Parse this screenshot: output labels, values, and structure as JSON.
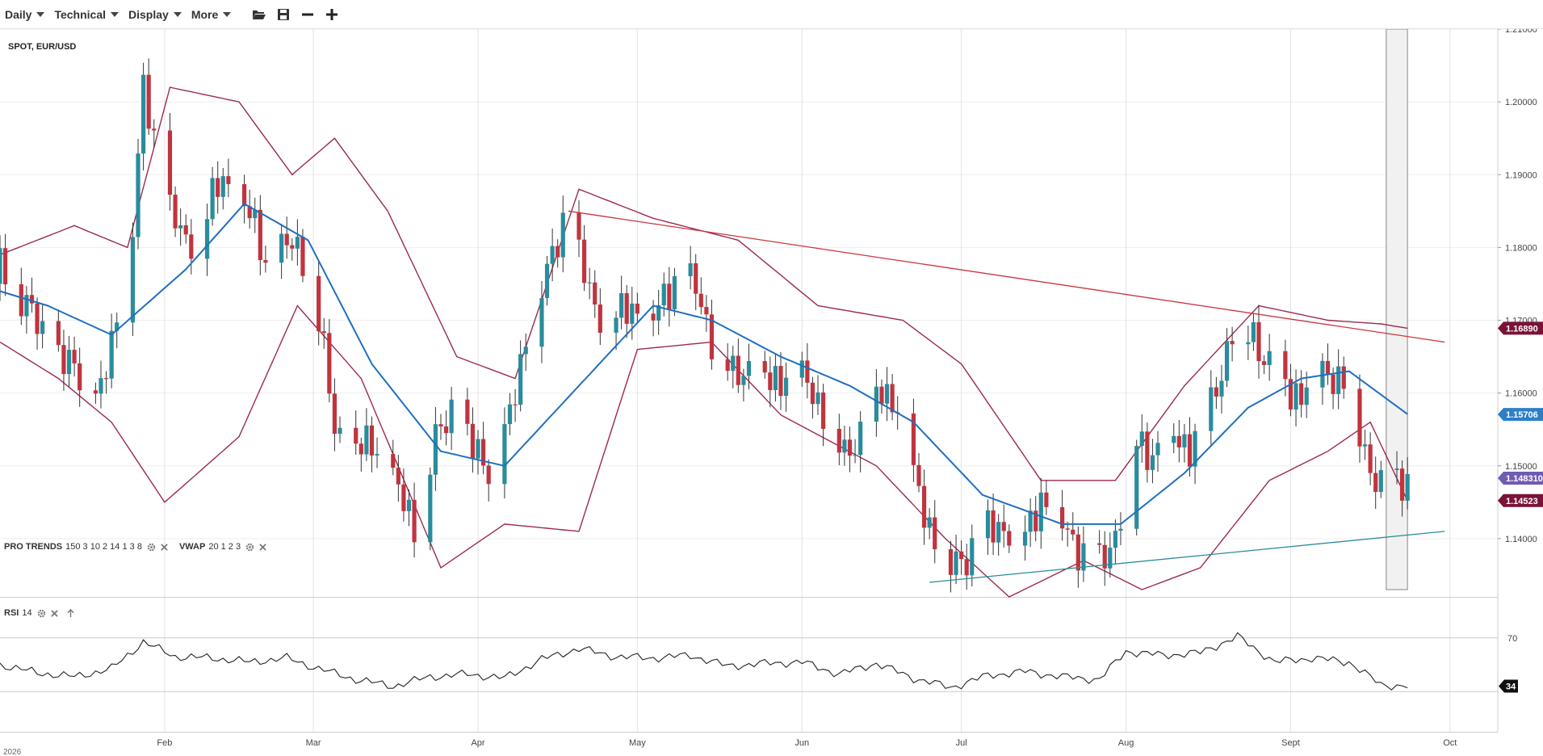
{
  "toolbar": {
    "menus": [
      "Daily",
      "Technical",
      "Display",
      "More"
    ],
    "icons": [
      "folder-open-icon",
      "save-icon",
      "zoom-out-icon",
      "zoom-in-icon"
    ]
  },
  "symbol": "SPOT, EUR/USD",
  "indicators": {
    "pro_trends": {
      "name": "PRO TRENDS",
      "params": "150 3 10 2 14 1 3 8"
    },
    "vwap": {
      "name": "VWAP",
      "params": "20 1 2 3"
    },
    "rsi": {
      "name": "RSI",
      "params": "14"
    }
  },
  "colors": {
    "up": "#2a8c9c",
    "down": "#c0343f",
    "bollinger": "#9b2a4e",
    "vwap": "#1f6fbf",
    "resistance": "#c9353e",
    "support": "#2a8c9c",
    "badge_upper": "#7a1239",
    "badge_mid": "#2c7fc7",
    "badge_last": "#6f5bb2",
    "badge_lower": "#7a1239"
  },
  "chart_data": {
    "type": "candlestick",
    "x_range": [
      "2026-01-01",
      "2026-10-10"
    ],
    "y_range": [
      1.132,
      1.21
    ],
    "y_ticks": [
      "1.21000",
      "1.20000",
      "1.19000",
      "1.18000",
      "1.17000",
      "1.16000",
      "1.15000",
      "1.14000"
    ],
    "x_ticks": [
      "Feb",
      "Mar",
      "Apr",
      "May",
      "Jun",
      "Jul",
      "Aug",
      "Sept",
      "Oct"
    ],
    "year_label": "2026",
    "price_badges": {
      "upper_band": "1.16890",
      "vwap": "1.15706",
      "last": "1.148310",
      "lower_band": "1.14523"
    },
    "close_anchors": [
      [
        "2026-01-01",
        1.177
      ],
      [
        "2026-01-05",
        1.173
      ],
      [
        "2026-01-09",
        1.168
      ],
      [
        "2026-01-13",
        1.164
      ],
      [
        "2026-01-17",
        1.162
      ],
      [
        "2026-01-20",
        1.1595
      ],
      [
        "2026-01-23",
        1.17
      ],
      [
        "2026-01-26",
        1.183
      ],
      [
        "2026-01-28",
        1.201
      ],
      [
        "2026-01-30",
        1.195
      ],
      [
        "2026-02-02",
        1.185
      ],
      [
        "2026-02-05",
        1.18
      ],
      [
        "2026-02-09",
        1.185
      ],
      [
        "2026-02-12",
        1.189
      ],
      [
        "2026-02-16",
        1.186
      ],
      [
        "2026-02-20",
        1.178
      ],
      [
        "2026-02-24",
        1.18
      ],
      [
        "2026-02-27",
        1.179
      ],
      [
        "2026-03-02",
        1.17
      ],
      [
        "2026-03-05",
        1.155
      ],
      [
        "2026-03-09",
        1.152
      ],
      [
        "2026-03-13",
        1.153
      ],
      [
        "2026-03-17",
        1.146
      ],
      [
        "2026-03-20",
        1.142
      ],
      [
        "2026-03-24",
        1.153
      ],
      [
        "2026-03-27",
        1.158
      ],
      [
        "2026-03-31",
        1.152
      ],
      [
        "2026-04-03",
        1.15
      ],
      [
        "2026-04-07",
        1.156
      ],
      [
        "2026-04-10",
        1.168
      ],
      [
        "2026-04-14",
        1.176
      ],
      [
        "2026-04-17",
        1.184
      ],
      [
        "2026-04-20",
        1.178
      ],
      [
        "2026-04-23",
        1.172
      ],
      [
        "2026-04-27",
        1.17
      ],
      [
        "2026-04-30",
        1.172
      ],
      [
        "2026-05-04",
        1.17
      ],
      [
        "2026-05-08",
        1.176
      ],
      [
        "2026-05-12",
        1.174
      ],
      [
        "2026-05-15",
        1.168
      ],
      [
        "2026-05-19",
        1.162
      ],
      [
        "2026-05-22",
        1.164
      ],
      [
        "2026-05-26",
        1.161
      ],
      [
        "2026-05-29",
        1.163
      ],
      [
        "2026-06-02",
        1.161
      ],
      [
        "2026-06-05",
        1.158
      ],
      [
        "2026-06-09",
        1.151
      ],
      [
        "2026-06-12",
        1.155
      ],
      [
        "2026-06-16",
        1.16
      ],
      [
        "2026-06-19",
        1.159
      ],
      [
        "2026-06-22",
        1.148
      ],
      [
        "2026-06-25",
        1.142
      ],
      [
        "2026-06-29",
        1.136
      ],
      [
        "2026-07-02",
        1.138
      ],
      [
        "2026-07-06",
        1.141
      ],
      [
        "2026-07-09",
        1.142
      ],
      [
        "2026-07-13",
        1.14
      ],
      [
        "2026-07-16",
        1.146
      ],
      [
        "2026-07-20",
        1.142
      ],
      [
        "2026-07-23",
        1.139
      ],
      [
        "2026-07-27",
        1.136
      ],
      [
        "2026-07-30",
        1.141
      ],
      [
        "2026-08-03",
        1.153
      ],
      [
        "2026-08-06",
        1.152
      ],
      [
        "2026-08-10",
        1.154
      ],
      [
        "2026-08-13",
        1.153
      ],
      [
        "2026-08-17",
        1.158
      ],
      [
        "2026-08-21",
        1.169
      ],
      [
        "2026-08-25",
        1.168
      ],
      [
        "2026-08-28",
        1.164
      ],
      [
        "2026-09-01",
        1.16
      ],
      [
        "2026-09-04",
        1.161
      ],
      [
        "2026-09-08",
        1.163
      ],
      [
        "2026-09-11",
        1.162
      ],
      [
        "2026-09-15",
        1.152
      ],
      [
        "2026-09-18",
        1.147
      ],
      [
        "2026-09-21",
        1.148
      ],
      [
        "2026-09-23",
        1.1483
      ]
    ],
    "vwap_anchors": [
      [
        "2026-01-01",
        1.174
      ],
      [
        "2026-01-10",
        1.172
      ],
      [
        "2026-01-22",
        1.168
      ],
      [
        "2026-02-05",
        1.177
      ],
      [
        "2026-02-16",
        1.186
      ],
      [
        "2026-02-28",
        1.181
      ],
      [
        "2026-03-12",
        1.164
      ],
      [
        "2026-03-25",
        1.152
      ],
      [
        "2026-04-06",
        1.15
      ],
      [
        "2026-04-20",
        1.161
      ],
      [
        "2026-05-04",
        1.172
      ],
      [
        "2026-05-15",
        1.17
      ],
      [
        "2026-05-28",
        1.165
      ],
      [
        "2026-06-10",
        1.161
      ],
      [
        "2026-06-22",
        1.156
      ],
      [
        "2026-07-05",
        1.146
      ],
      [
        "2026-07-20",
        1.142
      ],
      [
        "2026-07-31",
        1.142
      ],
      [
        "2026-08-12",
        1.149
      ],
      [
        "2026-08-24",
        1.158
      ],
      [
        "2026-09-03",
        1.162
      ],
      [
        "2026-09-12",
        1.163
      ],
      [
        "2026-09-23",
        1.1571
      ]
    ],
    "upper_band_anchors": [
      [
        "2026-01-01",
        1.179
      ],
      [
        "2026-01-15",
        1.183
      ],
      [
        "2026-01-25",
        1.18
      ],
      [
        "2026-02-02",
        1.202
      ],
      [
        "2026-02-15",
        1.2
      ],
      [
        "2026-02-25",
        1.19
      ],
      [
        "2026-03-05",
        1.195
      ],
      [
        "2026-03-15",
        1.185
      ],
      [
        "2026-03-28",
        1.165
      ],
      [
        "2026-04-08",
        1.162
      ],
      [
        "2026-04-20",
        1.188
      ],
      [
        "2026-05-04",
        1.184
      ],
      [
        "2026-05-20",
        1.181
      ],
      [
        "2026-06-04",
        1.172
      ],
      [
        "2026-06-20",
        1.17
      ],
      [
        "2026-07-01",
        1.164
      ],
      [
        "2026-07-16",
        1.148
      ],
      [
        "2026-07-30",
        1.148
      ],
      [
        "2026-08-12",
        1.161
      ],
      [
        "2026-08-26",
        1.172
      ],
      [
        "2026-09-08",
        1.17
      ],
      [
        "2026-09-18",
        1.1695
      ],
      [
        "2026-09-23",
        1.1689
      ]
    ],
    "lower_band_anchors": [
      [
        "2026-01-01",
        1.167
      ],
      [
        "2026-01-12",
        1.162
      ],
      [
        "2026-01-22",
        1.156
      ],
      [
        "2026-02-01",
        1.145
      ],
      [
        "2026-02-15",
        1.154
      ],
      [
        "2026-02-26",
        1.172
      ],
      [
        "2026-03-10",
        1.162
      ],
      [
        "2026-03-25",
        1.136
      ],
      [
        "2026-04-06",
        1.142
      ],
      [
        "2026-04-20",
        1.141
      ],
      [
        "2026-05-01",
        1.166
      ],
      [
        "2026-05-15",
        1.167
      ],
      [
        "2026-05-28",
        1.157
      ],
      [
        "2026-06-15",
        1.15
      ],
      [
        "2026-06-28",
        1.14
      ],
      [
        "2026-07-10",
        1.132
      ],
      [
        "2026-07-24",
        1.137
      ],
      [
        "2026-08-04",
        1.133
      ],
      [
        "2026-08-15",
        1.136
      ],
      [
        "2026-08-28",
        1.148
      ],
      [
        "2026-09-08",
        1.152
      ],
      [
        "2026-09-16",
        1.156
      ],
      [
        "2026-09-23",
        1.1452
      ]
    ],
    "resistance_line": [
      [
        "2026-04-18",
        1.185
      ],
      [
        "2026-09-30",
        1.167
      ]
    ],
    "support_line": [
      [
        "2026-06-25",
        1.134
      ],
      [
        "2026-09-30",
        1.141
      ]
    ],
    "highlight_range": {
      "x": [
        "2026-09-19",
        "2026-09-23"
      ],
      "y": [
        1.133,
        1.21
      ]
    },
    "rsi": {
      "levels": [
        70,
        30
      ],
      "last": "34",
      "anchors": [
        [
          "2026-01-01",
          50
        ],
        [
          "2026-01-08",
          44
        ],
        [
          "2026-01-15",
          41
        ],
        [
          "2026-01-22",
          47
        ],
        [
          "2026-01-28",
          67
        ],
        [
          "2026-02-03",
          56
        ],
        [
          "2026-02-10",
          55
        ],
        [
          "2026-02-17",
          52
        ],
        [
          "2026-02-24",
          55
        ],
        [
          "2026-03-02",
          47
        ],
        [
          "2026-03-09",
          39
        ],
        [
          "2026-03-16",
          34
        ],
        [
          "2026-03-23",
          41
        ],
        [
          "2026-03-30",
          43
        ],
        [
          "2026-04-06",
          40
        ],
        [
          "2026-04-13",
          54
        ],
        [
          "2026-04-20",
          62
        ],
        [
          "2026-04-27",
          56
        ],
        [
          "2026-05-04",
          55
        ],
        [
          "2026-05-11",
          57
        ],
        [
          "2026-05-18",
          49
        ],
        [
          "2026-05-25",
          51
        ],
        [
          "2026-06-01",
          52
        ],
        [
          "2026-06-08",
          43
        ],
        [
          "2026-06-15",
          51
        ],
        [
          "2026-06-22",
          40
        ],
        [
          "2026-06-29",
          33
        ],
        [
          "2026-07-06",
          42
        ],
        [
          "2026-07-13",
          45
        ],
        [
          "2026-07-20",
          41
        ],
        [
          "2026-07-27",
          39
        ],
        [
          "2026-08-01",
          60
        ],
        [
          "2026-08-08",
          57
        ],
        [
          "2026-08-15",
          59
        ],
        [
          "2026-08-22",
          71
        ],
        [
          "2026-08-29",
          52
        ],
        [
          "2026-09-05",
          55
        ],
        [
          "2026-09-12",
          52
        ],
        [
          "2026-09-18",
          35
        ],
        [
          "2026-09-23",
          34
        ]
      ]
    }
  }
}
